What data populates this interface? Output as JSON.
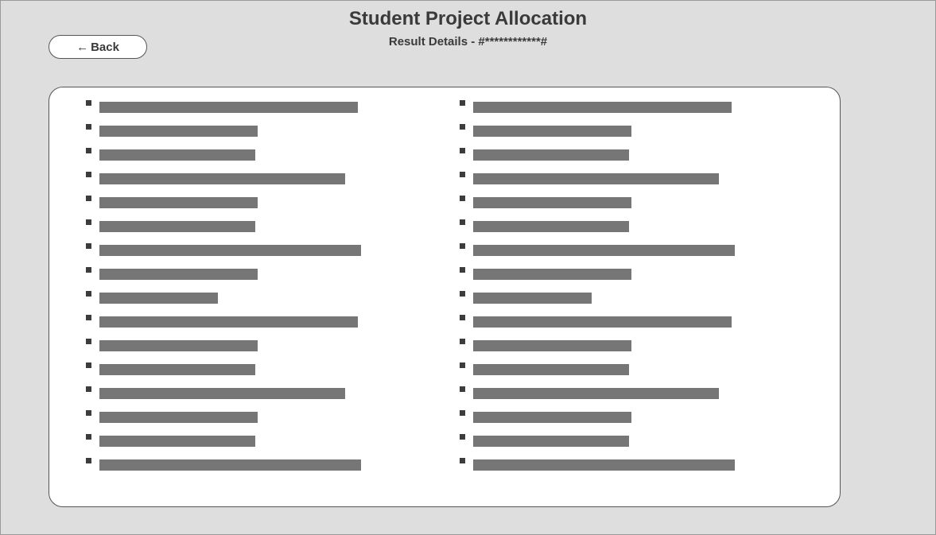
{
  "header": {
    "title": "Student Project Allocation",
    "subtitle": "Result Details - #************#"
  },
  "toolbar": {
    "back_arrow": "←",
    "back_label": "Back",
    "back_icon": "arrow-left-icon"
  },
  "results": {
    "left_column": [
      {
        "bar_fraction": 0.98
      },
      {
        "bar_fraction": 0.6
      },
      {
        "bar_fraction": 0.59
      },
      {
        "bar_fraction": 0.93
      },
      {
        "bar_fraction": 0.6
      },
      {
        "bar_fraction": 0.59
      },
      {
        "bar_fraction": 0.99
      },
      {
        "bar_fraction": 0.6
      },
      {
        "bar_fraction": 0.45
      },
      {
        "bar_fraction": 0.98
      },
      {
        "bar_fraction": 0.6
      },
      {
        "bar_fraction": 0.59
      },
      {
        "bar_fraction": 0.93
      },
      {
        "bar_fraction": 0.6
      },
      {
        "bar_fraction": 0.59
      },
      {
        "bar_fraction": 0.99
      }
    ],
    "right_column": [
      {
        "bar_fraction": 0.98
      },
      {
        "bar_fraction": 0.6
      },
      {
        "bar_fraction": 0.59
      },
      {
        "bar_fraction": 0.93
      },
      {
        "bar_fraction": 0.6
      },
      {
        "bar_fraction": 0.59
      },
      {
        "bar_fraction": 0.99
      },
      {
        "bar_fraction": 0.6
      },
      {
        "bar_fraction": 0.45
      },
      {
        "bar_fraction": 0.98
      },
      {
        "bar_fraction": 0.6
      },
      {
        "bar_fraction": 0.59
      },
      {
        "bar_fraction": 0.93
      },
      {
        "bar_fraction": 0.6
      },
      {
        "bar_fraction": 0.59
      },
      {
        "bar_fraction": 0.99
      }
    ]
  },
  "colors": {
    "background": "#dedede",
    "panel": "#ffffff",
    "bar": "#767676",
    "text": "#3a3a3a"
  }
}
